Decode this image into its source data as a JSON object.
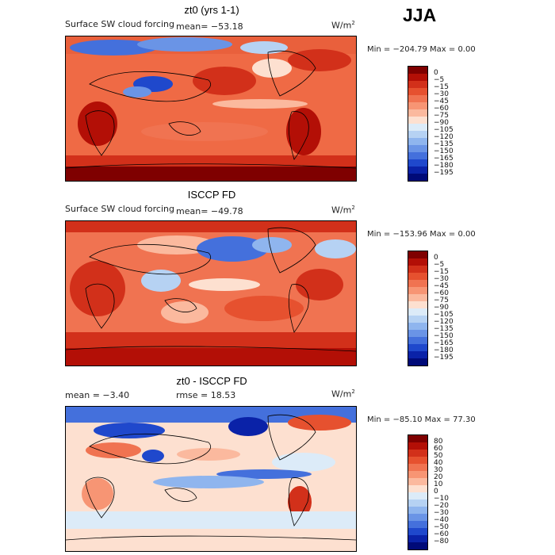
{
  "season": "JJA",
  "panels": [
    {
      "title": "zt0 (yrs 1-1)",
      "left_text": "Surface SW cloud forcing",
      "mean_text": "mean= −53.18",
      "units": "W/m",
      "units_exp": "2",
      "minmax": "Min = −204.79 Max =    0.00",
      "colorbar_labels": [
        "0",
        "−5",
        "−15",
        "−30",
        "−45",
        "−60",
        "−75",
        "−90",
        "−105",
        "−120",
        "−135",
        "−150",
        "−165",
        "−180",
        "−195"
      ]
    },
    {
      "title": "ISCCP FD",
      "left_text": "Surface SW cloud forcing",
      "mean_text": "mean= −49.78",
      "units": "W/m",
      "units_exp": "2",
      "minmax": "Min = −153.96 Max =    0.00",
      "colorbar_labels": [
        "0",
        "−5",
        "−15",
        "−30",
        "−45",
        "−60",
        "−75",
        "−90",
        "−105",
        "−120",
        "−135",
        "−150",
        "−165",
        "−180",
        "−195"
      ]
    },
    {
      "title": "zt0 - ISCCP FD",
      "mean_text": "mean =   −3.40",
      "rmse_text": "rmse =   18.53",
      "units": "W/m",
      "units_exp": "2",
      "minmax": "Min = −85.10 Max =   77.30",
      "colorbar_labels": [
        "80",
        "60",
        "50",
        "40",
        "30",
        "20",
        "10",
        "0",
        "−10",
        "−20",
        "−30",
        "−40",
        "−50",
        "−60",
        "−80"
      ]
    }
  ],
  "colors": {
    "forcing_scale": [
      "#7f0000",
      "#b30f06",
      "#d2301a",
      "#e6512f",
      "#f07351",
      "#f79574",
      "#fbb99e",
      "#fde0d0",
      "#dcebf8",
      "#b6d2f3",
      "#8fb5ee",
      "#6a94e6",
      "#4470dc",
      "#1f48cc",
      "#0a22a8",
      "#000a78"
    ],
    "diff_scale": [
      "#7f0000",
      "#b30f06",
      "#d2301a",
      "#e6512f",
      "#f07351",
      "#f79574",
      "#fbb99e",
      "#fde0d0",
      "#dcebf8",
      "#b6d2f3",
      "#8fb5ee",
      "#6a94e6",
      "#4470dc",
      "#1f48cc",
      "#0a22a8",
      "#000a78"
    ]
  }
}
